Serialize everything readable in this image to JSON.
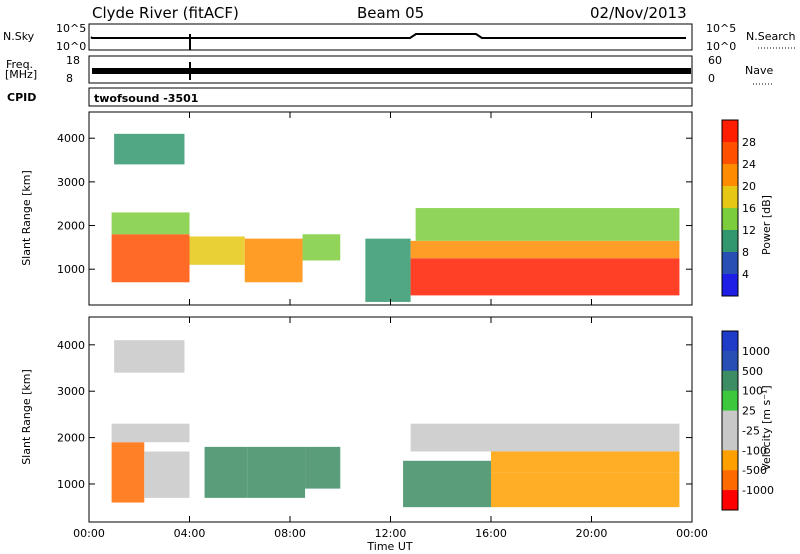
{
  "header": {
    "station": "Clyde River (fitACF)",
    "beam": "Beam 05",
    "date": "02/Nov/2013"
  },
  "info_panels": {
    "nsky_label": "N.Sky",
    "nsky_ticks": [
      "10^5",
      "10^0"
    ],
    "nsearch_label": "N.Search",
    "nsearch_ticks": [
      "10^5",
      "10^0"
    ],
    "freq_label": "Freq.",
    "freq_unit": "[MHz]",
    "freq_ticks": [
      "18",
      "8"
    ],
    "nave_label": "Nave",
    "nave_ticks": [
      "60",
      "0"
    ],
    "cpid_label": "CPID",
    "cpid_text": "twofsound  -3501"
  },
  "colors": {
    "power_scale": [
      "#1e1ee6",
      "#2850b4",
      "#32966e",
      "#7ccd3c",
      "#e6c814",
      "#ff8c00",
      "#ff5000",
      "#ff1e00"
    ],
    "velocity_scale": [
      "#ff0000",
      "#ff6a00",
      "#ffa000",
      "#c8c8c8",
      "#c8c8c8",
      "#3cc83c",
      "#3c8c64",
      "#2850b4",
      "#1e3cc8"
    ]
  },
  "chart_data": [
    {
      "type": "heatmap",
      "name": "power",
      "xlabel": "",
      "ylabel": "Slant Range [km]",
      "xlim": [
        0,
        24
      ],
      "ylim": [
        180,
        4600
      ],
      "yticks": [
        1000,
        2000,
        3000,
        4000
      ],
      "colorbar": {
        "label": "Power [dB]",
        "range": [
          0,
          32
        ],
        "ticks": [
          "4",
          "8",
          "12",
          "16",
          "20",
          "24",
          "28"
        ]
      },
      "regions": [
        {
          "t0": 0.9,
          "t1": 4.0,
          "r0": 700,
          "r1": 1800,
          "value": 24
        },
        {
          "t0": 0.9,
          "t1": 4.0,
          "r0": 1800,
          "r1": 2300,
          "value": 12
        },
        {
          "t0": 4.0,
          "t1": 6.2,
          "r0": 1100,
          "r1": 1750,
          "value": 16
        },
        {
          "t0": 6.2,
          "t1": 8.5,
          "r0": 700,
          "r1": 1700,
          "value": 22
        },
        {
          "t0": 8.5,
          "t1": 10.0,
          "r0": 1200,
          "r1": 1800,
          "value": 14
        },
        {
          "t0": 1.0,
          "t1": 3.8,
          "r0": 3400,
          "r1": 4100,
          "value": 8
        },
        {
          "t0": 11.0,
          "t1": 12.8,
          "r0": 250,
          "r1": 1700,
          "value": 10
        },
        {
          "t0": 12.8,
          "t1": 23.5,
          "r0": 400,
          "r1": 1250,
          "value": 29
        },
        {
          "t0": 12.8,
          "t1": 23.5,
          "r0": 1250,
          "r1": 1650,
          "value": 20
        },
        {
          "t0": 13.0,
          "t1": 23.5,
          "r0": 1650,
          "r1": 2400,
          "value": 14
        }
      ]
    },
    {
      "type": "heatmap",
      "name": "velocity",
      "xlabel": "Time UT",
      "ylabel": "Slant Range [km]",
      "xlim": [
        0,
        24
      ],
      "ylim": [
        180,
        4600
      ],
      "xticks": [
        "00:00",
        "04:00",
        "08:00",
        "12:00",
        "16:00",
        "20:00",
        "00:00"
      ],
      "yticks": [
        1000,
        2000,
        3000,
        4000
      ],
      "colorbar": {
        "label": "Velocity [m s⁻¹]",
        "ticks": [
          "1000",
          "500",
          "100",
          "25",
          "-25",
          "-100",
          "-500",
          "-1000"
        ]
      },
      "regions": [
        {
          "t0": 0.9,
          "t1": 2.2,
          "r0": 600,
          "r1": 1900,
          "value": 1
        },
        {
          "t0": 2.2,
          "t1": 4.0,
          "r0": 700,
          "r1": 1700,
          "value": 3
        },
        {
          "t0": 0.9,
          "t1": 4.0,
          "r0": 1900,
          "r1": 2300,
          "value": 4
        },
        {
          "t0": 4.6,
          "t1": 6.3,
          "r0": 700,
          "r1": 1800,
          "value": 6
        },
        {
          "t0": 6.3,
          "t1": 8.6,
          "r0": 700,
          "r1": 1800,
          "value": 6
        },
        {
          "t0": 8.6,
          "t1": 10.0,
          "r0": 900,
          "r1": 1800,
          "value": 6
        },
        {
          "t0": 1.0,
          "t1": 3.8,
          "r0": 3400,
          "r1": 4100,
          "value": 4
        },
        {
          "t0": 12.5,
          "t1": 16.0,
          "r0": 500,
          "r1": 1500,
          "value": 6
        },
        {
          "t0": 16.0,
          "t1": 23.5,
          "r0": 500,
          "r1": 1250,
          "value": 2
        },
        {
          "t0": 16.0,
          "t1": 23.5,
          "r0": 1250,
          "r1": 1700,
          "value": 2
        },
        {
          "t0": 12.8,
          "t1": 23.5,
          "r0": 1700,
          "r1": 2300,
          "value": 4
        }
      ]
    }
  ]
}
